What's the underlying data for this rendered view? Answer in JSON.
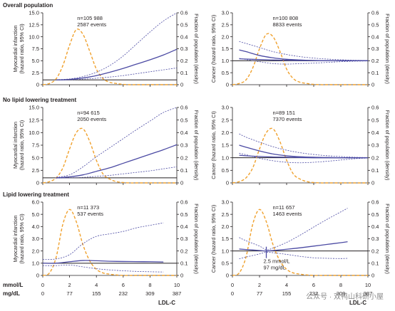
{
  "chart_data": [
    {
      "type": "line",
      "title": "Overall population",
      "ylabel": [
        "Myocardial infarction",
        "(hazard ratio, 95% CI)"
      ],
      "ylabel_right": "Fraction of population (density)",
      "ylim": [
        0,
        15
      ],
      "yticks": [
        "0",
        "2.5",
        "5.0",
        "7.5",
        "10.0",
        "12.5",
        "15.0"
      ],
      "ylim_right": [
        0,
        0.6
      ],
      "yticks_right": [
        "0",
        "0.1",
        "0.2",
        "0.3",
        "0.4",
        "0.5",
        "0.6"
      ],
      "xlim": [
        0,
        10
      ],
      "reference": 1,
      "annotation": [
        "n=105 988",
        "2587 events"
      ],
      "x": [
        1,
        2,
        3,
        4,
        5,
        6,
        7,
        8,
        9,
        10
      ],
      "series": [
        {
          "role": "estimate",
          "values": [
            1.0,
            1.1,
            1.4,
            1.9,
            2.6,
            3.4,
            4.3,
            5.2,
            6.2,
            7.4
          ]
        },
        {
          "role": "ci-upper",
          "values": [
            1.05,
            1.2,
            1.7,
            2.6,
            4.0,
            6.0,
            8.5,
            11.0,
            13.3,
            15.0
          ]
        },
        {
          "role": "ci-lower",
          "values": [
            0.95,
            1.0,
            1.15,
            1.35,
            1.6,
            1.9,
            2.3,
            2.7,
            3.1,
            3.5
          ]
        }
      ],
      "density": {
        "x": [
          0,
          0.5,
          1,
          1.5,
          2,
          2.5,
          3,
          3.5,
          4,
          4.5,
          5,
          5.5,
          6,
          6.5,
          7,
          8,
          9,
          10
        ],
        "values": [
          0,
          0.01,
          0.05,
          0.16,
          0.33,
          0.46,
          0.42,
          0.28,
          0.13,
          0.05,
          0.02,
          0.01,
          0.003,
          0,
          0,
          0,
          0,
          0
        ]
      }
    },
    {
      "type": "line",
      "title": "",
      "ylabel": [
        "Cancer (hazard ratio, 95% CI)"
      ],
      "ylabel_right": "Fraction of population (density)",
      "ylim": [
        0,
        3.0
      ],
      "yticks": [
        "0",
        "0.5",
        "1.0",
        "1.5",
        "2.0",
        "2.5",
        "3.0"
      ],
      "ylim_right": [
        0,
        0.6
      ],
      "yticks_right": [
        "0",
        "0.1",
        "0.2",
        "0.3",
        "0.4",
        "0.5",
        "0.6"
      ],
      "xlim": [
        0,
        10
      ],
      "reference": 1,
      "annotation": [
        "n=100 808",
        "8833 events"
      ],
      "x": [
        0.5,
        1,
        2,
        3,
        4,
        5,
        6,
        7,
        8,
        9,
        10
      ],
      "series": [
        {
          "role": "estimate",
          "values": [
            1.45,
            1.38,
            1.22,
            1.12,
            1.06,
            1.03,
            1.01,
            1.0,
            1.0,
            1.0,
            1.0
          ]
        },
        {
          "role": "ci-upper",
          "values": [
            1.8,
            1.72,
            1.55,
            1.38,
            1.26,
            1.17,
            1.11,
            1.07,
            1.04,
            1.02,
            1.01
          ]
        },
        {
          "role": "ci-lower",
          "values": [
            1.1,
            1.05,
            0.96,
            0.88,
            0.86,
            0.88,
            0.9,
            0.93,
            0.96,
            0.98,
            0.99
          ]
        },
        {
          "role": "estimate-2",
          "values": [
            1.08,
            1.07,
            1.05,
            1.03,
            1.02,
            1.01,
            1.01,
            1.0,
            1.0,
            1.0,
            1.0
          ]
        }
      ],
      "density": {
        "x": [
          0,
          0.5,
          1,
          1.5,
          2,
          2.5,
          3,
          3.5,
          4,
          4.5,
          5,
          5.5,
          6,
          6.5,
          7,
          8,
          9,
          10
        ],
        "values": [
          0,
          0.01,
          0.04,
          0.14,
          0.3,
          0.42,
          0.4,
          0.28,
          0.13,
          0.05,
          0.02,
          0.01,
          0.003,
          0,
          0,
          0,
          0,
          0
        ]
      }
    },
    {
      "type": "line",
      "title": "No lipid lowering treatment",
      "ylabel": [
        "Myocardial infarction",
        "(hazard ratio, 95% CI)"
      ],
      "ylabel_right": "Fraction of population (density)",
      "ylim": [
        0,
        15
      ],
      "yticks": [
        "0",
        "2.5",
        "5.0",
        "7.5",
        "10.0",
        "12.5",
        "15.0"
      ],
      "ylim_right": [
        0,
        0.6
      ],
      "yticks_right": [
        "0",
        "0.1",
        "0.2",
        "0.3",
        "0.4",
        "0.5",
        "0.6"
      ],
      "xlim": [
        0,
        10
      ],
      "reference": 1,
      "annotation": [
        "n=94 615",
        "2050 events"
      ],
      "x": [
        1,
        2,
        3,
        4,
        5,
        6,
        7,
        8,
        9,
        10
      ],
      "series": [
        {
          "role": "estimate",
          "values": [
            1.0,
            1.2,
            1.6,
            2.3,
            3.0,
            3.9,
            4.8,
            5.7,
            6.6,
            7.6
          ]
        },
        {
          "role": "ci-upper",
          "values": [
            1.1,
            1.6,
            3.2,
            5.2,
            7.0,
            8.8,
            10.6,
            12.3,
            14.0,
            15.0
          ]
        },
        {
          "role": "ci-lower",
          "values": [
            0.95,
            1.0,
            1.1,
            1.3,
            1.5,
            1.8,
            2.1,
            2.4,
            2.8,
            3.2
          ]
        }
      ],
      "density": {
        "x": [
          0,
          0.5,
          1,
          1.5,
          2,
          2.5,
          3,
          3.5,
          4,
          4.5,
          5,
          5.5,
          6,
          6.5,
          7,
          8,
          9,
          10
        ],
        "values": [
          0,
          0.01,
          0.04,
          0.12,
          0.27,
          0.4,
          0.43,
          0.33,
          0.18,
          0.07,
          0.03,
          0.01,
          0.003,
          0,
          0,
          0,
          0,
          0
        ]
      }
    },
    {
      "type": "line",
      "title": "",
      "ylabel": [
        "Cancer (hazard ratio, 95% CI)"
      ],
      "ylabel_right": "Fraction of population (density)",
      "ylim": [
        0,
        3.0
      ],
      "yticks": [
        "0",
        "0.5",
        "1.0",
        "1.5",
        "2.0",
        "2.5",
        "3.0"
      ],
      "ylim_right": [
        0,
        0.6
      ],
      "yticks_right": [
        "0",
        "0.1",
        "0.2",
        "0.3",
        "0.4",
        "0.5",
        "0.6"
      ],
      "xlim": [
        0,
        10
      ],
      "reference": 1,
      "annotation": [
        "n=89 151",
        "7370 events"
      ],
      "x": [
        0.5,
        1,
        2,
        3,
        4,
        5,
        6,
        7,
        8,
        9,
        10
      ],
      "series": [
        {
          "role": "estimate",
          "values": [
            1.5,
            1.42,
            1.27,
            1.15,
            1.08,
            1.04,
            1.02,
            1.01,
            1.0,
            1.0,
            1.0
          ]
        },
        {
          "role": "ci-upper",
          "values": [
            1.95,
            1.82,
            1.62,
            1.44,
            1.3,
            1.2,
            1.13,
            1.08,
            1.05,
            1.02,
            1.01
          ]
        },
        {
          "role": "ci-lower",
          "values": [
            1.18,
            1.12,
            0.98,
            0.88,
            0.82,
            0.8,
            0.82,
            0.86,
            0.91,
            0.96,
            0.99
          ]
        },
        {
          "role": "estimate-2",
          "values": [
            1.1,
            1.08,
            1.05,
            1.03,
            1.02,
            1.01,
            1.0,
            1.0,
            1.0,
            1.0,
            1.0
          ]
        }
      ],
      "density": {
        "x": [
          0,
          0.5,
          1,
          1.5,
          2,
          2.5,
          3,
          3.5,
          4,
          4.5,
          5,
          5.5,
          6,
          6.5,
          7,
          8,
          9,
          10
        ],
        "values": [
          0,
          0.01,
          0.04,
          0.12,
          0.27,
          0.4,
          0.43,
          0.33,
          0.18,
          0.07,
          0.03,
          0.01,
          0.003,
          0,
          0,
          0,
          0,
          0
        ]
      }
    },
    {
      "type": "line",
      "title": "Lipid lowering treatment",
      "ylabel": [
        "Myocardial infarction",
        "(hazard ratio, 95% CI)"
      ],
      "ylabel_right": "Fraction of population (density)",
      "ylim": [
        0,
        6.0
      ],
      "yticks": [
        "0",
        "1.0",
        "2.0",
        "3.0",
        "4.0",
        "5.0",
        "6.0"
      ],
      "ylim_right": [
        0,
        0.6
      ],
      "yticks_right": [
        "0",
        "0.1",
        "0.2",
        "0.3",
        "0.4",
        "0.5",
        "0.6"
      ],
      "xlim": [
        0,
        10
      ],
      "reference": 1,
      "annotation": [
        "n=11 373",
        "537 events"
      ],
      "x": [
        0,
        1,
        2,
        3,
        4,
        5,
        6,
        7,
        8,
        9
      ],
      "series": [
        {
          "role": "estimate",
          "values": [
            1.0,
            1.0,
            1.12,
            1.22,
            1.2,
            1.16,
            1.14,
            1.13,
            1.12,
            1.1
          ]
        },
        {
          "role": "ci-upper",
          "values": [
            1.3,
            1.35,
            1.7,
            2.6,
            3.2,
            3.4,
            3.6,
            3.9,
            4.1,
            4.3
          ]
        },
        {
          "role": "ci-lower",
          "values": [
            0.8,
            0.8,
            0.85,
            0.7,
            0.55,
            0.45,
            0.38,
            0.33,
            0.3,
            0.28
          ]
        }
      ],
      "density": {
        "x": [
          0,
          0.5,
          1,
          1.5,
          2,
          2.5,
          3,
          3.5,
          4,
          4.5,
          5,
          5.5,
          6,
          7,
          8,
          9,
          10
        ],
        "values": [
          0,
          0.02,
          0.15,
          0.42,
          0.54,
          0.44,
          0.25,
          0.12,
          0.05,
          0.02,
          0.01,
          0.004,
          0,
          0,
          0,
          0,
          0
        ]
      }
    },
    {
      "type": "line",
      "title": "",
      "ylabel": [
        "Cancer (hazard ratio, 95% CI)"
      ],
      "ylabel_right": "Fraction of population (density)",
      "ylim": [
        0,
        3.0
      ],
      "yticks": [
        "0",
        "0.5",
        "1.0",
        "1.5",
        "2.0",
        "2.5",
        "3.0"
      ],
      "ylim_right": [
        0,
        0.6
      ],
      "yticks_right": [
        "0",
        "0.1",
        "0.2",
        "0.3",
        "0.4",
        "0.5",
        "0.6"
      ],
      "xlim": [
        0,
        10
      ],
      "reference": 1,
      "annotation": [
        "n=11 657",
        "1463 events"
      ],
      "marker_note": [
        "2.5 mmol/L",
        "97 mg/dL"
      ],
      "marker_x": 2.5,
      "x": [
        0.5,
        1,
        2,
        2.5,
        3,
        4,
        5,
        6,
        7,
        8,
        8.5
      ],
      "series": [
        {
          "role": "estimate",
          "values": [
            1.08,
            1.06,
            1.02,
            1.0,
            1.02,
            1.07,
            1.13,
            1.2,
            1.27,
            1.34,
            1.38
          ]
        },
        {
          "role": "ci-upper",
          "values": [
            1.55,
            1.42,
            1.2,
            1.05,
            1.12,
            1.35,
            1.65,
            1.98,
            2.3,
            2.6,
            2.75
          ]
        },
        {
          "role": "ci-lower",
          "values": [
            0.68,
            0.75,
            0.88,
            0.95,
            0.93,
            0.86,
            0.78,
            0.72,
            0.7,
            0.69,
            0.7
          ]
        }
      ],
      "density": {
        "x": [
          0,
          0.5,
          1,
          1.5,
          2,
          2.5,
          3,
          3.5,
          4,
          4.5,
          5,
          5.5,
          6,
          7,
          8,
          9,
          10
        ],
        "values": [
          0,
          0.02,
          0.15,
          0.42,
          0.54,
          0.44,
          0.25,
          0.12,
          0.05,
          0.02,
          0.01,
          0.004,
          0,
          0,
          0,
          0,
          0
        ]
      }
    }
  ],
  "x_axis": {
    "mmol_label": "mmol/L",
    "mmol_ticks": [
      "0",
      "2",
      "4",
      "6",
      "8",
      "10"
    ],
    "mgdl_label": "mg/dL",
    "mgdl_ticks": [
      "0",
      "77",
      "155",
      "232",
      "309",
      "387"
    ],
    "caption": "LDL-C"
  },
  "watermark": "公众号 · 双鸭山科研小屋",
  "colors": {
    "estimate": "#4b4aa3",
    "density": "#f0a12d",
    "axis": "#231f20"
  }
}
